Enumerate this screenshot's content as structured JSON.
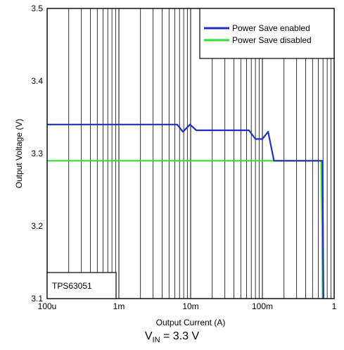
{
  "chart_data": {
    "type": "line",
    "xlabel": "Output Current (A)",
    "ylabel": "Output Voltage (V)",
    "xscale": "log",
    "xlim": [
      0.0001,
      1
    ],
    "ylim": [
      3.1,
      3.5
    ],
    "grid": true,
    "x_ticks": [
      {
        "value": 0.0001,
        "label": "100u"
      },
      {
        "value": 0.001,
        "label": "1m"
      },
      {
        "value": 0.01,
        "label": "10m"
      },
      {
        "value": 0.1,
        "label": "100m"
      },
      {
        "value": 1,
        "label": "1"
      }
    ],
    "y_ticks": [
      {
        "value": 3.1,
        "label": "3.1"
      },
      {
        "value": 3.2,
        "label": "3.2"
      },
      {
        "value": 3.3,
        "label": "3.3"
      },
      {
        "value": 3.4,
        "label": "3.4"
      },
      {
        "value": 3.5,
        "label": "3.5"
      }
    ],
    "legend_position": "top-right",
    "annotation": "TPS63051",
    "series": [
      {
        "name": "Power Save enabled",
        "color": "#1f2fbf",
        "points": [
          [
            0.0001,
            3.34
          ],
          [
            0.0065,
            3.34
          ],
          [
            0.0078,
            3.33
          ],
          [
            0.0098,
            3.34
          ],
          [
            0.012,
            3.332
          ],
          [
            0.065,
            3.332
          ],
          [
            0.08,
            3.32
          ],
          [
            0.1,
            3.32
          ],
          [
            0.12,
            3.33
          ],
          [
            0.145,
            3.29
          ],
          [
            0.69,
            3.29
          ],
          [
            0.7,
            3.18
          ],
          [
            0.71,
            3.1
          ]
        ]
      },
      {
        "name": "Power Save disabled",
        "color": "#33dd33",
        "points": [
          [
            0.0001,
            3.29
          ],
          [
            0.66,
            3.29
          ],
          [
            0.68,
            3.2
          ],
          [
            0.69,
            3.1
          ]
        ]
      }
    ]
  },
  "caption": {
    "prefix": "V",
    "subscript": "IN",
    "suffix": " = 3.3 V"
  }
}
